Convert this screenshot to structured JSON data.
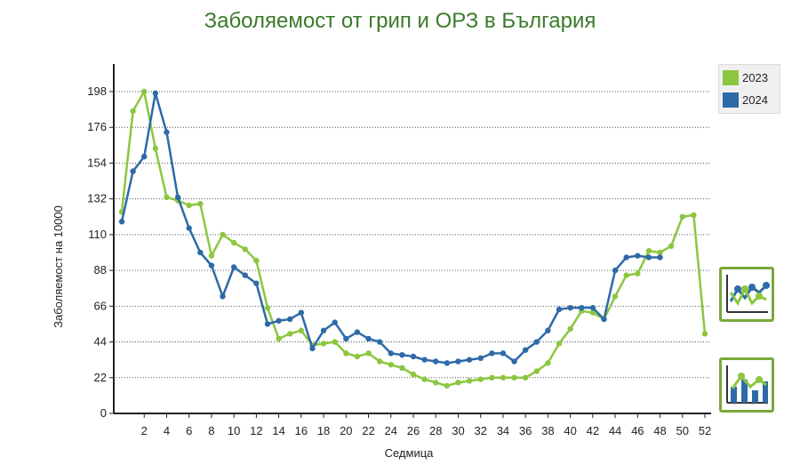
{
  "page": {
    "title": "Заболяемост от грип и ОРЗ в България"
  },
  "colors": {
    "title": "#3a7a2a",
    "series_2023": "#8cc63f",
    "series_2024": "#2e6aa8",
    "button_border": "#7aa83a"
  },
  "legend": {
    "items": [
      {
        "label": "2023",
        "color": "#8cc63f"
      },
      {
        "label": "2024",
        "color": "#2e6aa8"
      }
    ]
  },
  "buttons": {
    "line_view": {
      "icon": "line-chart-icon"
    },
    "bar_view": {
      "icon": "bar-chart-icon"
    }
  },
  "chart_data": {
    "type": "line",
    "title": "Заболяемост от грип и ОРЗ в България",
    "xlabel": "Седмица",
    "ylabel": "Заболяемост на 10000",
    "xlim": [
      0,
      52
    ],
    "ylim": [
      0,
      220
    ],
    "yticks": [
      0,
      22,
      44,
      66,
      88,
      110,
      132,
      154,
      176,
      198
    ],
    "xticks": [
      2,
      4,
      6,
      8,
      10,
      12,
      14,
      16,
      18,
      20,
      22,
      24,
      26,
      28,
      30,
      32,
      34,
      36,
      38,
      40,
      42,
      44,
      46,
      48,
      50,
      52
    ],
    "grid": "horizontal dotted",
    "legend_position": "top-right",
    "series": [
      {
        "name": "2023",
        "color": "#8cc63f",
        "x": [
          0,
          1,
          2,
          3,
          4,
          5,
          6,
          7,
          8,
          9,
          10,
          11,
          12,
          13,
          14,
          15,
          16,
          17,
          18,
          19,
          20,
          21,
          22,
          23,
          24,
          25,
          26,
          27,
          28,
          29,
          30,
          31,
          32,
          33,
          34,
          35,
          36,
          37,
          38,
          39,
          40,
          41,
          42,
          43,
          44,
          45,
          46,
          47,
          48,
          49,
          50,
          51,
          52
        ],
        "values": [
          124,
          186,
          198,
          163,
          133,
          131,
          128,
          129,
          97,
          110,
          105,
          101,
          94,
          65,
          46,
          49,
          51,
          42,
          43,
          44,
          37,
          35,
          37,
          32,
          30,
          28,
          24,
          21,
          19,
          17,
          19,
          20,
          21,
          22,
          22,
          22,
          22,
          26,
          31,
          43,
          52,
          63,
          62,
          58,
          72,
          85,
          86,
          100,
          99,
          103,
          121,
          122,
          49
        ]
      },
      {
        "name": "2024",
        "color": "#2e6aa8",
        "x": [
          0,
          1,
          2,
          3,
          4,
          5,
          6,
          7,
          8,
          9,
          10,
          11,
          12,
          13,
          14,
          15,
          16,
          17,
          18,
          19,
          20,
          21,
          22,
          23,
          24,
          25,
          26,
          27,
          28,
          29,
          30,
          31,
          32,
          33,
          34,
          35,
          36,
          37,
          38,
          39,
          40,
          41,
          42,
          43,
          44,
          45,
          46,
          47,
          48
        ],
        "values": [
          118,
          149,
          158,
          197,
          173,
          133,
          114,
          99,
          91,
          72,
          90,
          85,
          80,
          55,
          57,
          58,
          62,
          40,
          51,
          56,
          46,
          50,
          46,
          44,
          37,
          36,
          35,
          33,
          32,
          31,
          32,
          33,
          34,
          37,
          37,
          32,
          39,
          44,
          51,
          64,
          65,
          65,
          65,
          58,
          88,
          96,
          97,
          96,
          96
        ]
      }
    ]
  }
}
